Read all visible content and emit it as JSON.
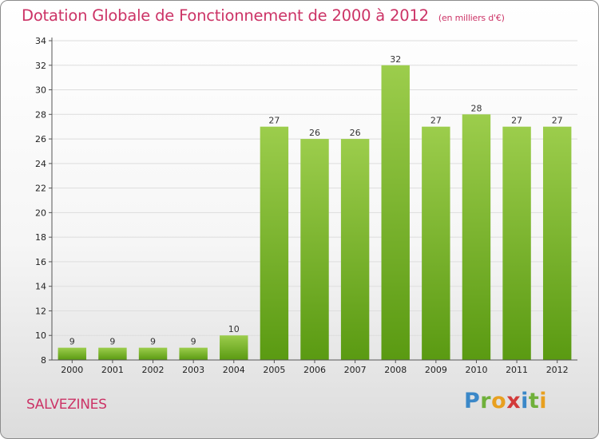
{
  "header": {
    "title": "Dotation Globale de Fonctionnement de 2000 à 2012",
    "unit": "(en milliers d'€)"
  },
  "footer": {
    "commune": "SALVEZINES"
  },
  "logo": {
    "text": "Proxiti",
    "letters": [
      {
        "char": "P",
        "color": "#3b88c8"
      },
      {
        "char": "r",
        "color": "#6fb03a"
      },
      {
        "char": "o",
        "color": "#e8a020"
      },
      {
        "char": "x",
        "color": "#d23a3a"
      },
      {
        "char": "i",
        "color": "#3b88c8"
      },
      {
        "char": "t",
        "color": "#6fb03a"
      },
      {
        "char": "i",
        "color": "#e8a020"
      }
    ]
  },
  "colors": {
    "bar_top": "#9ccd4c",
    "bar_bottom": "#5a9a12",
    "accent": "#cc3366",
    "grid": "#dddddd"
  },
  "chart_data": {
    "type": "bar",
    "categories": [
      "2000",
      "2001",
      "2002",
      "2003",
      "2004",
      "2005",
      "2006",
      "2007",
      "2008",
      "2009",
      "2010",
      "2011",
      "2012"
    ],
    "values": [
      9,
      9,
      9,
      9,
      10,
      27,
      26,
      26,
      32,
      27,
      28,
      27,
      27
    ],
    "title": "Dotation Globale de Fonctionnement de 2000 à 2012",
    "subtitle": "(en milliers d'€)",
    "xlabel": "",
    "ylabel": "",
    "ylim": [
      8,
      34
    ],
    "yticks": [
      8,
      10,
      12,
      14,
      16,
      18,
      20,
      22,
      24,
      26,
      28,
      30,
      32,
      34
    ],
    "grid": true,
    "legend": "none"
  }
}
